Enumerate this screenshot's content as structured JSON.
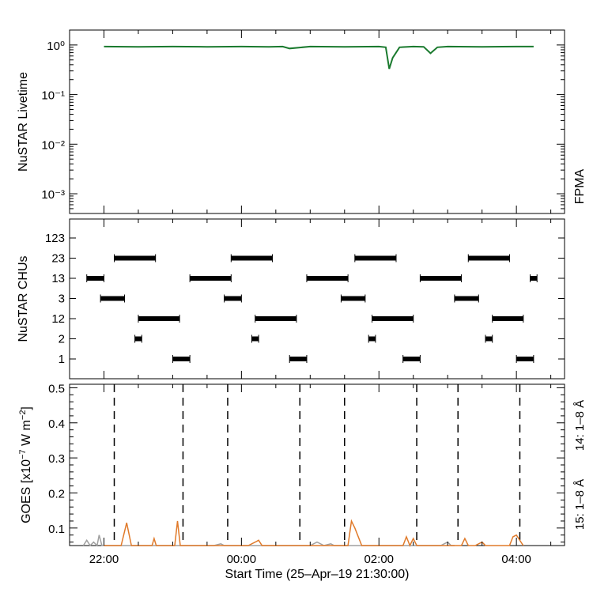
{
  "xaxis": {
    "title": "Start Time (25–Apr–19 21:30:00)",
    "tick_labels": [
      "22:00",
      "00:00",
      "02:00",
      "04:00"
    ]
  },
  "panels": {
    "livetime": {
      "ylabel": "NuSTAR Livetime",
      "right_label": "FPMA",
      "tick_labels": [
        "10⁻³",
        "10⁻²",
        "10⁻¹",
        "10⁰"
      ]
    },
    "chus": {
      "ylabel": "NuSTAR CHUs",
      "category_labels": [
        "1",
        "2",
        "12",
        "3",
        "13",
        "23",
        "123"
      ]
    },
    "goes": {
      "ylabel_main": "GOES [x10",
      "ylabel_sup1": "−7",
      "ylabel_mid": " W m",
      "ylabel_sup2": "−2",
      "ylabel_end": "]",
      "tick_labels": [
        "0.1",
        "0.2",
        "0.3",
        "0.4",
        "0.5"
      ],
      "right_label_14": "14: 1–8 Å",
      "right_label_15": "15: 1–8 Å"
    }
  },
  "colors": {
    "livetime": "#1a7a2e",
    "goes14": "#e07a2a",
    "goes15": "#e03020",
    "goes_gray": "#a0a0a0",
    "axes": "#000000"
  },
  "chart_data": [
    {
      "type": "line",
      "panel": "livetime",
      "yscale": "log",
      "ylim": [
        0.0004,
        2
      ],
      "xlim_hours": [
        21.5,
        28.7
      ],
      "series": [
        {
          "x": [
            22.0,
            22.5,
            23.0,
            23.5,
            24.0,
            24.4,
            24.6,
            24.7,
            25.0,
            25.5,
            26.0,
            26.1,
            26.15,
            26.2,
            26.3,
            26.5,
            26.65,
            26.75,
            26.85,
            27.0,
            27.5,
            28.0,
            28.25
          ],
          "y": [
            0.93,
            0.92,
            0.93,
            0.92,
            0.93,
            0.92,
            0.93,
            0.85,
            0.93,
            0.92,
            0.93,
            0.9,
            0.33,
            0.55,
            0.9,
            0.93,
            0.92,
            0.68,
            0.9,
            0.93,
            0.92,
            0.93,
            0.93
          ]
        }
      ]
    },
    {
      "type": "scatter",
      "panel": "chus",
      "categories": [
        "1",
        "2",
        "12",
        "3",
        "13",
        "23",
        "123"
      ],
      "segments": [
        {
          "cat": "13",
          "start": 21.75,
          "end": 22.0
        },
        {
          "cat": "3",
          "start": 21.95,
          "end": 22.3
        },
        {
          "cat": "23",
          "start": 22.15,
          "end": 22.75
        },
        {
          "cat": "2",
          "start": 22.45,
          "end": 22.55
        },
        {
          "cat": "12",
          "start": 22.5,
          "end": 23.1
        },
        {
          "cat": "1",
          "start": 23.0,
          "end": 23.25
        },
        {
          "cat": "13",
          "start": 23.25,
          "end": 23.85
        },
        {
          "cat": "3",
          "start": 23.75,
          "end": 24.0
        },
        {
          "cat": "23",
          "start": 23.85,
          "end": 24.45
        },
        {
          "cat": "2",
          "start": 24.15,
          "end": 24.25
        },
        {
          "cat": "12",
          "start": 24.2,
          "end": 24.8
        },
        {
          "cat": "1",
          "start": 24.7,
          "end": 24.95
        },
        {
          "cat": "13",
          "start": 24.95,
          "end": 25.55
        },
        {
          "cat": "3",
          "start": 25.45,
          "end": 25.8
        },
        {
          "cat": "23",
          "start": 25.65,
          "end": 26.25
        },
        {
          "cat": "2",
          "start": 25.85,
          "end": 25.95
        },
        {
          "cat": "12",
          "start": 25.9,
          "end": 26.5
        },
        {
          "cat": "1",
          "start": 26.35,
          "end": 26.6
        },
        {
          "cat": "13",
          "start": 26.6,
          "end": 27.2
        },
        {
          "cat": "3",
          "start": 27.1,
          "end": 27.45
        },
        {
          "cat": "23",
          "start": 27.3,
          "end": 27.9
        },
        {
          "cat": "2",
          "start": 27.55,
          "end": 27.65
        },
        {
          "cat": "12",
          "start": 27.65,
          "end": 28.1
        },
        {
          "cat": "1",
          "start": 28.0,
          "end": 28.25
        },
        {
          "cat": "13",
          "start": 28.2,
          "end": 28.3
        }
      ]
    },
    {
      "type": "line",
      "panel": "goes",
      "ylim": [
        0.05,
        0.51
      ],
      "dashed_x": [
        22.15,
        23.15,
        23.8,
        24.85,
        25.5,
        26.55,
        27.15,
        28.05
      ],
      "series": [
        {
          "color_key": "goes14",
          "x": [
            22.0,
            22.25,
            22.33,
            22.4,
            22.6,
            22.7,
            22.73,
            22.76,
            22.95,
            23.03,
            23.07,
            23.11,
            23.2,
            24.1,
            24.2,
            24.25,
            24.3,
            25.45,
            25.55,
            25.6,
            25.65,
            25.75,
            26.35,
            26.4,
            26.45,
            26.5,
            26.55,
            27.2,
            27.25,
            27.3,
            27.4,
            27.5,
            27.55,
            27.6,
            27.9,
            27.95,
            28.0,
            28.1
          ],
          "y": [
            0.05,
            0.05,
            0.115,
            0.05,
            0.05,
            0.05,
            0.07,
            0.05,
            0.05,
            0.05,
            0.12,
            0.05,
            0.05,
            0.05,
            0.06,
            0.065,
            0.05,
            0.05,
            0.05,
            0.12,
            0.1,
            0.05,
            0.05,
            0.075,
            0.05,
            0.07,
            0.05,
            0.05,
            0.07,
            0.05,
            0.05,
            0.06,
            0.05,
            0.05,
            0.05,
            0.075,
            0.08,
            0.05
          ]
        },
        {
          "color_key": "goes_gray",
          "x": [
            21.7,
            21.75,
            21.8,
            21.85,
            21.9,
            21.93,
            21.97,
            22.0,
            23.6,
            23.7,
            23.75,
            23.8,
            25.0,
            25.1,
            25.2,
            25.3,
            25.35,
            26.9,
            27.0,
            27.05,
            27.1
          ],
          "y": [
            0.05,
            0.065,
            0.05,
            0.06,
            0.05,
            0.08,
            0.05,
            0.05,
            0.05,
            0.055,
            0.05,
            0.05,
            0.05,
            0.06,
            0.05,
            0.055,
            0.05,
            0.05,
            0.06,
            0.05,
            0.05
          ]
        }
      ]
    }
  ]
}
